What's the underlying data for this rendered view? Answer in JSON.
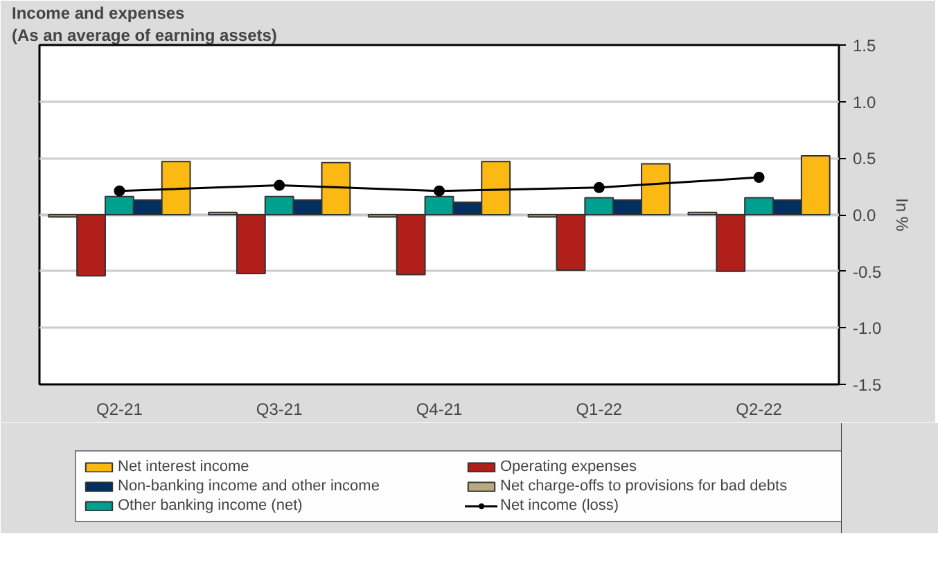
{
  "chart_data": {
    "type": "bar",
    "title": "Income and expenses",
    "subtitle": "(As an average of earning assets)",
    "y2label": "In %",
    "categories": [
      "Q2-21",
      "Q3-21",
      "Q4-21",
      "Q1-22",
      "Q2-22"
    ],
    "series": [
      {
        "name": "Net charge-offs to provisions for bad debts",
        "color": "#b8a983",
        "values": [
          -0.02,
          0.02,
          -0.02,
          -0.02,
          0.02
        ]
      },
      {
        "name": "Operating expenses",
        "color": "#b01f1a",
        "values": [
          -0.54,
          -0.52,
          -0.53,
          -0.49,
          -0.5
        ]
      },
      {
        "name": "Other banking income (net)",
        "color": "#00a08e",
        "values": [
          0.16,
          0.16,
          0.16,
          0.15,
          0.15
        ]
      },
      {
        "name": "Non-banking income and other income",
        "color": "#00305f",
        "values": [
          0.13,
          0.13,
          0.11,
          0.13,
          0.13
        ]
      },
      {
        "name": "Net interest income",
        "color": "#fdb913",
        "values": [
          0.47,
          0.46,
          0.47,
          0.45,
          0.52
        ]
      },
      {
        "name": "Net income (loss)",
        "type": "line",
        "color": "#000000",
        "marker": "circle",
        "values": [
          0.21,
          0.26,
          0.21,
          0.24,
          0.33
        ]
      }
    ],
    "ylim": [
      -1.5,
      1.5
    ],
    "yticks": [
      {
        "value": -1.5,
        "label": "-1.5"
      },
      {
        "value": -1.0,
        "label": "-1.0"
      },
      {
        "value": -0.5,
        "label": "-0.5"
      },
      {
        "value": 0,
        "label": "0.0"
      },
      {
        "value": 0.5,
        "label": "0.5"
      },
      {
        "value": 1.0,
        "label": "1.0"
      },
      {
        "value": 1.5,
        "label": "1.5"
      }
    ],
    "grid": "y",
    "legend": "bottom"
  }
}
